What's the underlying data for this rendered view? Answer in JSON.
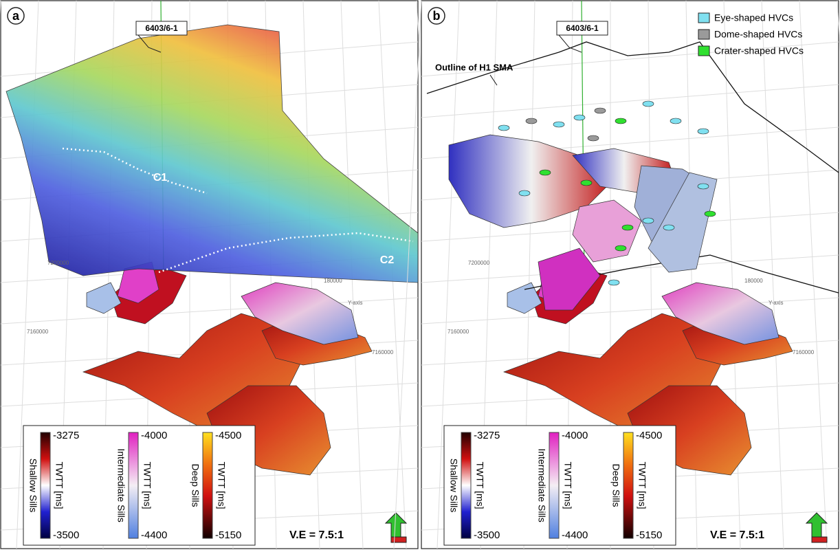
{
  "panels": [
    {
      "label": "a",
      "well": "6403/6-1",
      "annotations": [
        "C1",
        "C2"
      ],
      "axis_labels": [
        "7200000",
        "180000",
        "7160000",
        "Y-axis",
        "7160000"
      ],
      "colorbars": [
        {
          "name": "Shallow Sills",
          "unit": "TWTT [ms]",
          "top": -3275,
          "bottom": -3500
        },
        {
          "name": "Intermediate Sills",
          "unit": "TWTT [ms]",
          "top": -4000,
          "bottom": -4400
        },
        {
          "name": "Deep Sills",
          "unit": "TWTT [ms]",
          "top": -4500,
          "bottom": -5150
        }
      ],
      "ve": "V.E = 7.5:1"
    },
    {
      "label": "b",
      "well": "6403/6-1",
      "annotations": [
        "Outline of H1 SMA"
      ],
      "legend": [
        "Eye-shaped HVCs",
        "Dome-shaped HVCs",
        "Crater-shaped HVCs"
      ],
      "axis_labels": [
        "7200000",
        "180000",
        "7160000",
        "Y-axis",
        "7160000"
      ],
      "colorbars": [
        {
          "name": "Shallow Sills",
          "unit": "TWTT [ms]",
          "top": -3275,
          "bottom": -3500
        },
        {
          "name": "Intermediate Sills",
          "unit": "TWTT [ms]",
          "top": -4000,
          "bottom": -4400
        },
        {
          "name": "Deep Sills",
          "unit": "TWTT [ms]",
          "top": -4500,
          "bottom": -5150
        }
      ],
      "ve": "V.E = 7.5:1"
    }
  ]
}
